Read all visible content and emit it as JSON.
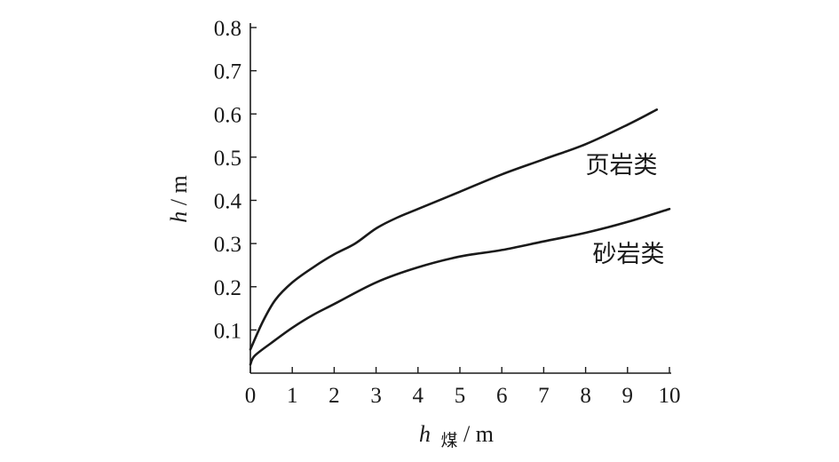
{
  "chart_data": {
    "type": "line",
    "xlabel_main": "h",
    "xlabel_sub": "煤",
    "xlabel_unit": " / m",
    "ylabel_main": "h",
    "ylabel_unit": " / m",
    "xlim": [
      0,
      10
    ],
    "ylim": [
      0,
      0.8
    ],
    "xticks": [
      "0",
      "1",
      "2",
      "3",
      "4",
      "5",
      "6",
      "7",
      "8",
      "9",
      "10"
    ],
    "yticks": [
      "0.1",
      "0.2",
      "0.3",
      "0.4",
      "0.5",
      "0.6",
      "0.7",
      "0.8"
    ],
    "grid": false,
    "legend": "none",
    "series": [
      {
        "name": "页岩类",
        "x": [
          0,
          0.3,
          0.6,
          1.0,
          1.5,
          2.0,
          2.5,
          3.0,
          3.5,
          4.0,
          5.0,
          6.0,
          7.0,
          8.0,
          9.0,
          9.7
        ],
        "y": [
          0.055,
          0.12,
          0.17,
          0.21,
          0.245,
          0.275,
          0.3,
          0.335,
          0.36,
          0.38,
          0.42,
          0.46,
          0.495,
          0.53,
          0.575,
          0.61
        ]
      },
      {
        "name": "砂岩类",
        "x": [
          0,
          0.1,
          0.5,
          1.0,
          1.5,
          2.0,
          3.0,
          4.0,
          5.0,
          6.0,
          7.0,
          8.0,
          9.0,
          10.0
        ],
        "y": [
          0.02,
          0.04,
          0.07,
          0.105,
          0.135,
          0.16,
          0.21,
          0.245,
          0.27,
          0.285,
          0.305,
          0.325,
          0.35,
          0.38
        ]
      }
    ]
  }
}
